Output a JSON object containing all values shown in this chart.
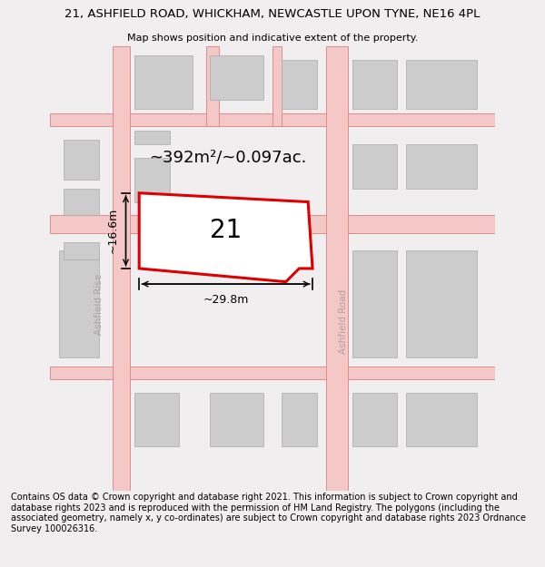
{
  "title": "21, ASHFIELD ROAD, WHICKHAM, NEWCASTLE UPON TYNE, NE16 4PL",
  "subtitle": "Map shows position and indicative extent of the property.",
  "footer": "Contains OS data © Crown copyright and database right 2021. This information is subject to Crown copyright and database rights 2023 and is reproduced with the permission of HM Land Registry. The polygons (including the associated geometry, namely x, y co-ordinates) are subject to Crown copyright and database rights 2023 Ordnance Survey 100026316.",
  "area_label": "~392m²/~0.097ac.",
  "property_number": "21",
  "width_label": "~29.8m",
  "height_label": "~16.6m",
  "bg_color": "#f0eeee",
  "map_bg": "#eeecec",
  "road_fill": "#f5c8c8",
  "road_edge": "#e08080",
  "building_fill": "#cccccc",
  "building_edge": "#aaaaaa",
  "property_edge": "#dd0000",
  "property_fill": "#ffffff",
  "title_fontsize": 9.5,
  "subtitle_fontsize": 8,
  "footer_fontsize": 7,
  "area_fontsize": 13,
  "number_fontsize": 20,
  "dim_fontsize": 9
}
